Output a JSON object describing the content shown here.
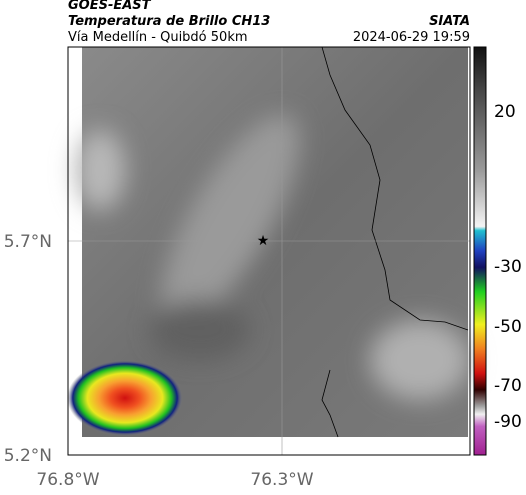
{
  "header": {
    "source": "GOES-EAST",
    "title": "Temperatura de Brillo CH13",
    "region": "Vía Medellín - Quibdó 50km",
    "agency": "SIATA",
    "datetime": "2024-06-29 19:59"
  },
  "map": {
    "lat_ticks": [
      "5.7°N",
      "5.2°N"
    ],
    "lon_ticks": [
      "76.8°W",
      "76.3°W"
    ]
  },
  "colorbar": {
    "ticks": [
      20,
      -30,
      -50,
      -70,
      -90
    ]
  }
}
